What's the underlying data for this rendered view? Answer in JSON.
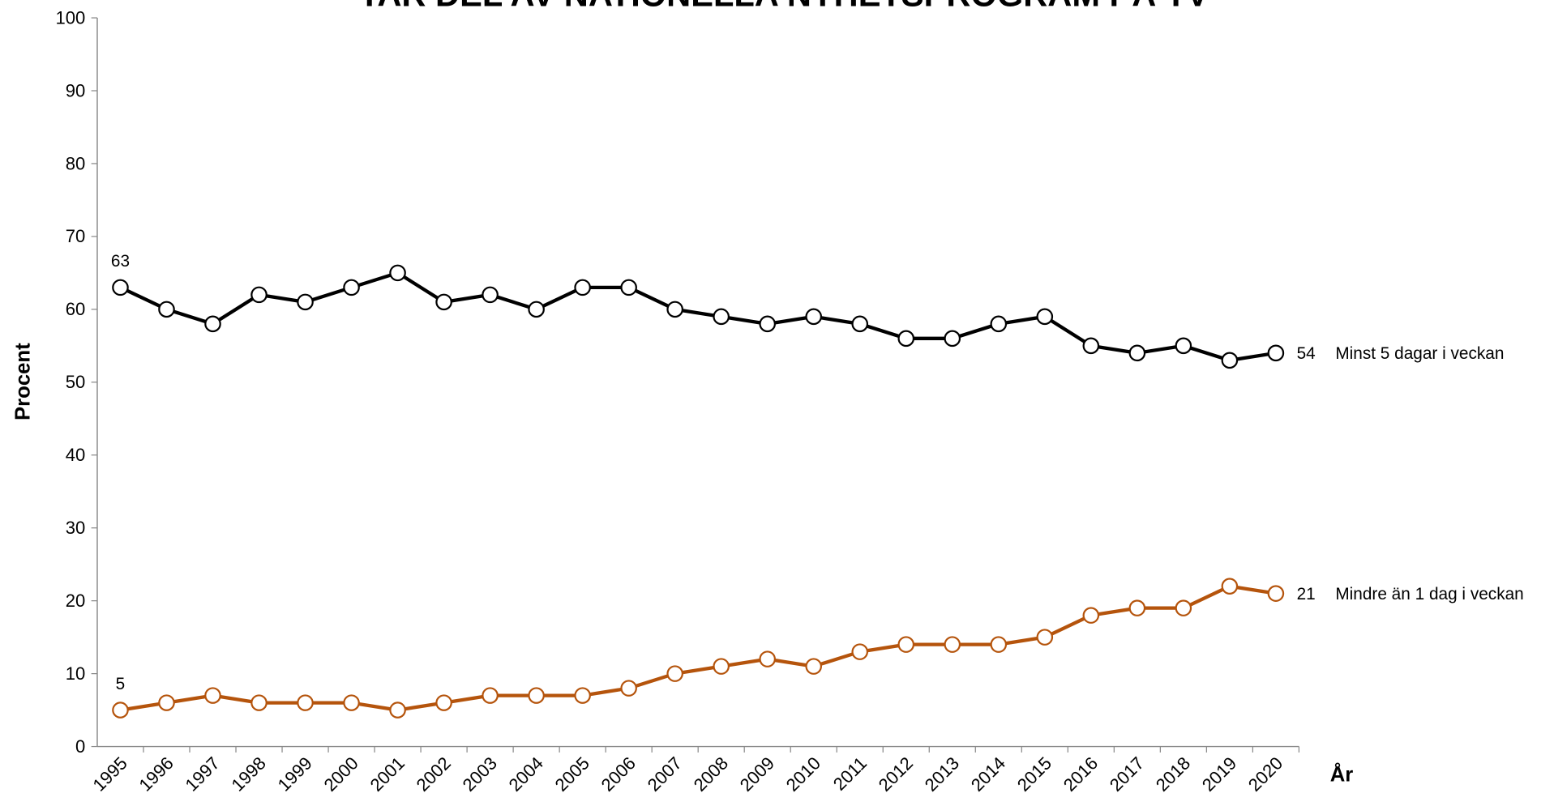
{
  "chart_data": {
    "type": "line",
    "title": "TAR DEL AV NATIONELLA NYHETSPROGRAM PÅ TV",
    "y_label": "Procent",
    "x_label": "År",
    "categories": [
      "1995",
      "1996",
      "1997",
      "1998",
      "1999",
      "2000",
      "2001",
      "2002",
      "2003",
      "2004",
      "2005",
      "2006",
      "2007",
      "2008",
      "2009",
      "2010",
      "2011",
      "2012",
      "2013",
      "2014",
      "2015",
      "2016",
      "2017",
      "2018",
      "2019",
      "2020"
    ],
    "series": [
      {
        "name": "Minst 5 dagar i veckan",
        "color": "#000000",
        "values": [
          63,
          60,
          58,
          62,
          61,
          63,
          65,
          61,
          62,
          60,
          63,
          63,
          60,
          59,
          58,
          59,
          58,
          56,
          56,
          58,
          59,
          55,
          54,
          55,
          53,
          54
        ]
      },
      {
        "name": "Mindre än 1 dag i veckan",
        "color": "#b5540c",
        "values": [
          5,
          6,
          7,
          6,
          6,
          6,
          5,
          6,
          7,
          7,
          7,
          8,
          10,
          11,
          12,
          11,
          13,
          14,
          14,
          14,
          15,
          18,
          19,
          19,
          22,
          21
        ]
      }
    ],
    "ylim": [
      0,
      100
    ],
    "yticks": [
      0,
      10,
      20,
      30,
      40,
      50,
      60,
      70,
      80,
      90,
      100
    ]
  }
}
